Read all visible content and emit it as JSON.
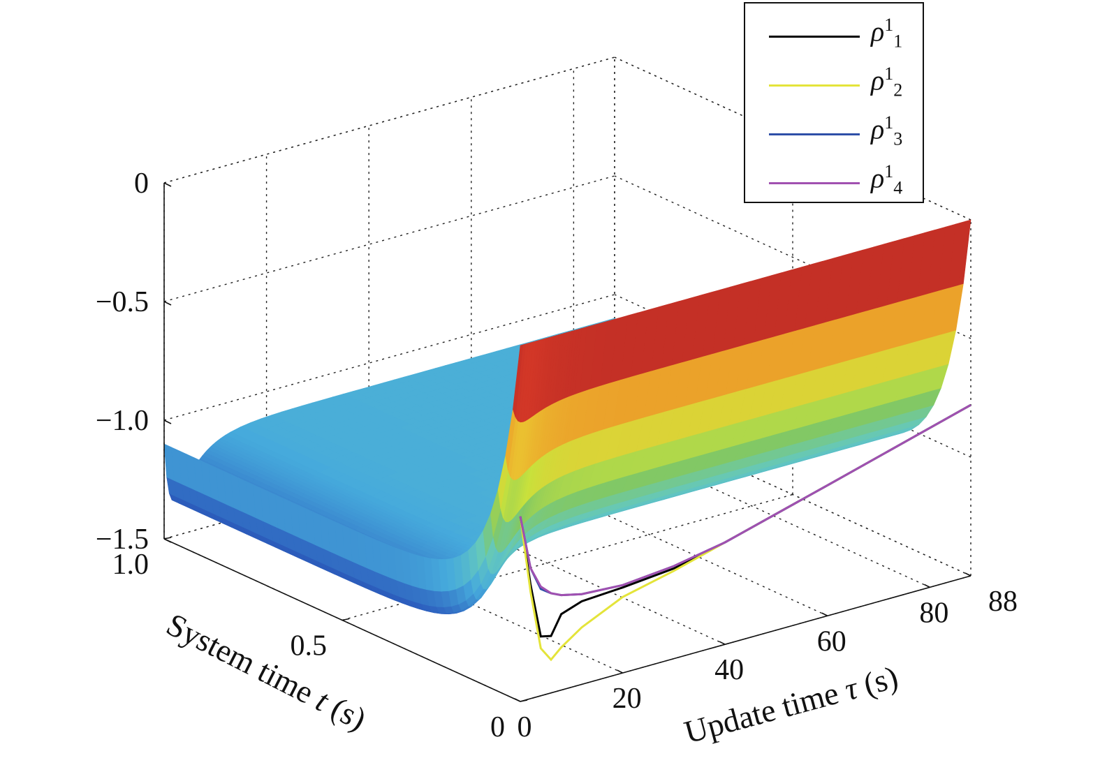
{
  "chart_data": {
    "type": "surface3d",
    "xlabel_parts": {
      "pre": "System time ",
      "var": "t",
      "post": " (s)"
    },
    "ylabel_parts": {
      "pre": "Update time ",
      "var": "τ",
      "post": " (s)"
    },
    "zlim": [
      -1.5,
      0
    ],
    "xlim": [
      0,
      1.0
    ],
    "ylim": [
      0,
      88
    ],
    "zticks": [
      "0",
      "−0.5",
      "−1.0",
      "−1.5"
    ],
    "xticks": [
      "0",
      "0.5",
      "1.0"
    ],
    "yticks": [
      "0",
      "20",
      "40",
      "60",
      "80",
      "88"
    ],
    "grid": true,
    "legend_placement": "top-right",
    "series": [
      {
        "name": "ρ",
        "sup": "1",
        "sub": "1",
        "color": "#000000",
        "tau": [
          0,
          2,
          4,
          6,
          8,
          12,
          20,
          30,
          40,
          60,
          88
        ],
        "values": [
          -0.72,
          -1.02,
          -1.25,
          -1.26,
          -1.18,
          -1.15,
          -1.14,
          -1.12,
          -1.07,
          -0.95,
          -0.78
        ]
      },
      {
        "name": "ρ",
        "sup": "1",
        "sub": "2",
        "color": "#e4e43a",
        "tau": [
          0,
          2,
          4,
          6,
          8,
          12,
          20,
          30,
          40,
          60,
          88
        ],
        "values": [
          -0.72,
          -1.05,
          -1.3,
          -1.36,
          -1.32,
          -1.26,
          -1.18,
          -1.13,
          -1.07,
          -0.95,
          -0.78
        ]
      },
      {
        "name": "ρ",
        "sup": "1",
        "sub": "3",
        "color": "#2e4fa8",
        "tau": [
          0,
          2,
          4,
          6,
          8,
          12,
          20,
          30,
          40,
          60,
          88
        ],
        "values": [
          -0.72,
          -0.95,
          -1.05,
          -1.08,
          -1.1,
          -1.12,
          -1.13,
          -1.11,
          -1.07,
          -0.95,
          -0.78
        ]
      },
      {
        "name": "ρ",
        "sup": "1",
        "sub": "4",
        "color": "#a050b0",
        "tau": [
          0,
          2,
          4,
          6,
          8,
          12,
          20,
          30,
          40,
          60,
          88
        ],
        "values": [
          -0.72,
          -0.95,
          -1.04,
          -1.08,
          -1.1,
          -1.12,
          -1.13,
          -1.11,
          -1.07,
          -0.95,
          -0.78
        ]
      }
    ]
  }
}
